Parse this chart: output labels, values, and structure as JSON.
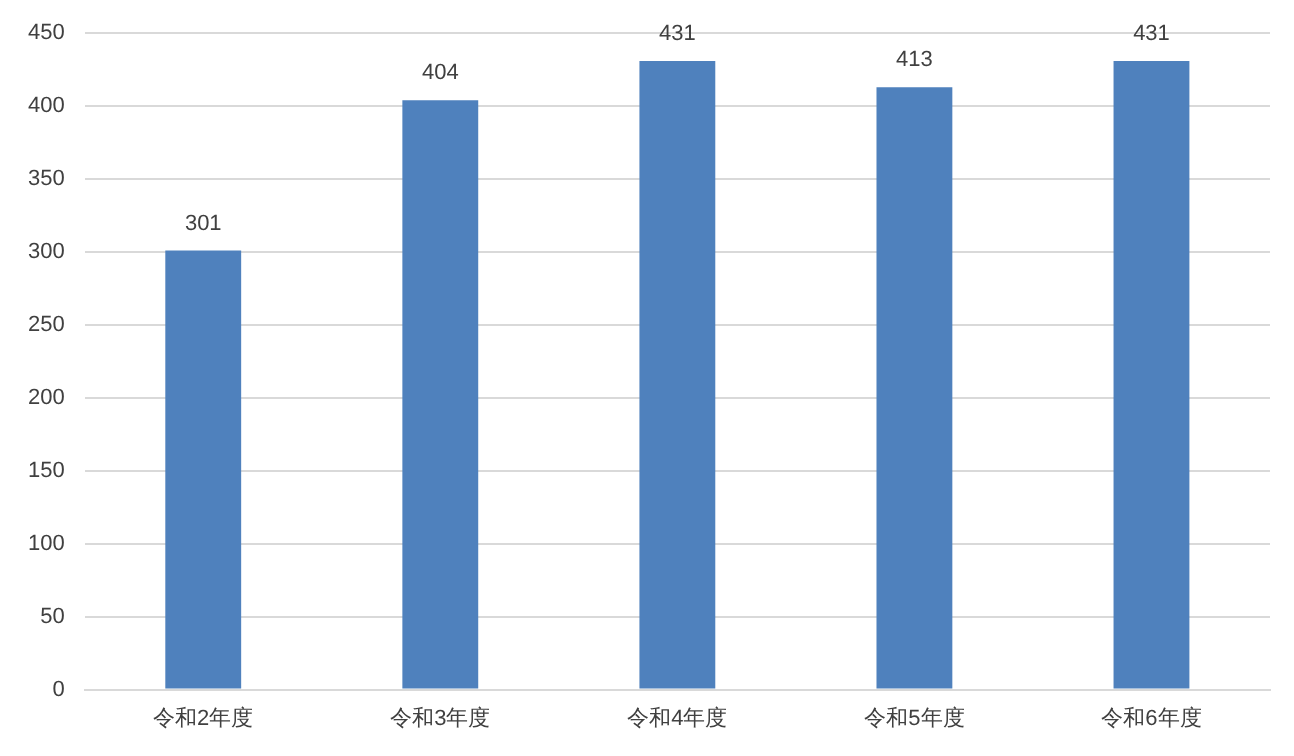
{
  "chart_data": {
    "type": "bar",
    "categories": [
      "令和2年度",
      "令和3年度",
      "令和4年度",
      "令和5年度",
      "令和6年度"
    ],
    "values": [
      301,
      404,
      431,
      413,
      431
    ],
    "color": "#4f81bd",
    "ylim": [
      0,
      450
    ],
    "yticks": [
      0,
      50,
      100,
      150,
      200,
      250,
      300,
      350,
      400,
      450
    ],
    "grid": "y",
    "data_labels": true,
    "legend": false
  }
}
